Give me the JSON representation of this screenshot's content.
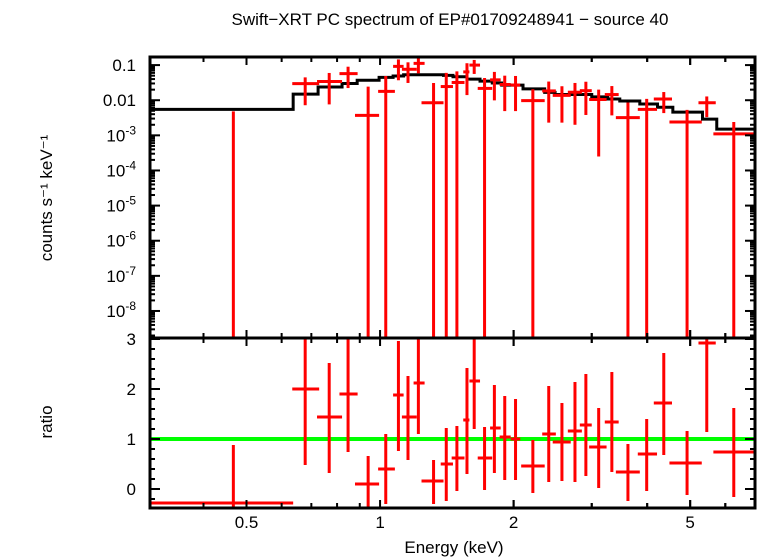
{
  "chart_data": [
    {
      "type": "scatter",
      "panel": "top",
      "title": "Swift−XRT PC spectrum of EP#01709248941 − source 40",
      "ylabel": "counts s⁻¹ keV⁻¹",
      "xlabel": "Energy (keV)",
      "x_scale": "log",
      "y_scale": "log",
      "xlim": [
        0.303,
        7.0
      ],
      "ylim": [
        1.7e-09,
        0.17
      ],
      "y_ticks": [
        {
          "value": 0.1,
          "base": "0.1",
          "exp": ""
        },
        {
          "value": 0.01,
          "base": "0.01",
          "exp": ""
        },
        {
          "value": 0.001,
          "base": "10",
          "exp": "-3"
        },
        {
          "value": 0.0001,
          "base": "10",
          "exp": "-4"
        },
        {
          "value": 1e-05,
          "base": "10",
          "exp": "-5"
        },
        {
          "value": 1e-06,
          "base": "10",
          "exp": "-6"
        },
        {
          "value": 1e-07,
          "base": "10",
          "exp": "-7"
        },
        {
          "value": 1e-08,
          "base": "10",
          "exp": "-8"
        }
      ],
      "colors": {
        "data": "#ff0000",
        "model": "#000000"
      },
      "model_steps": {
        "edges": [
          0.303,
          0.637,
          0.725,
          0.821,
          0.888,
          0.995,
          1.07,
          1.13,
          1.39,
          1.46,
          1.57,
          1.68,
          1.79,
          1.88,
          2.1,
          2.35,
          2.48,
          3.0,
          3.26,
          3.47,
          3.85,
          4.22,
          4.57,
          5.33,
          5.74,
          7.0
        ],
        "values": [
          0.0055,
          0.0149,
          0.0237,
          0.03,
          0.037,
          0.0446,
          0.049,
          0.053,
          0.051,
          0.0465,
          0.04,
          0.035,
          0.031,
          0.027,
          0.021,
          0.0167,
          0.0146,
          0.0125,
          0.0108,
          0.0095,
          0.0078,
          0.0063,
          0.0046,
          0.0029,
          0.0015
        ]
      },
      "points": [
        {
          "e": 0.467,
          "elo": 0.303,
          "ehi": 0.637,
          "y": -0.0015,
          "ylo": -0.01,
          "yhi": 0.0048
        },
        {
          "e": 0.678,
          "elo": 0.634,
          "ehi": 0.729,
          "y": 0.0298,
          "ylo": 0.0072,
          "yhi": 0.0447
        },
        {
          "e": 0.768,
          "elo": 0.721,
          "ehi": 0.821,
          "y": 0.0341,
          "ylo": 0.0076,
          "yhi": 0.0597
        },
        {
          "e": 0.847,
          "elo": 0.81,
          "ehi": 0.89,
          "y": 0.057,
          "ylo": 0.0222,
          "yhi": 0.09
        },
        {
          "e": 0.94,
          "elo": 0.878,
          "ehi": 0.995,
          "y": 0.0037,
          "ylo": -0.014,
          "yhi": 0.0244
        },
        {
          "e": 1.03,
          "elo": 0.99,
          "ehi": 1.08,
          "y": 0.0178,
          "ylo": -0.013,
          "yhi": 0.049
        },
        {
          "e": 1.1,
          "elo": 1.07,
          "ehi": 1.13,
          "y": 0.092,
          "ylo": 0.037,
          "yhi": 0.145
        },
        {
          "e": 1.156,
          "elo": 1.12,
          "ehi": 1.21,
          "y": 0.076,
          "ylo": 0.031,
          "yhi": 0.12
        },
        {
          "e": 1.22,
          "elo": 1.19,
          "ehi": 1.26,
          "y": 0.112,
          "ylo": 0.058,
          "yhi": 0.159
        },
        {
          "e": 1.32,
          "elo": 1.24,
          "ehi": 1.39,
          "y": 0.0085,
          "ylo": -0.016,
          "yhi": 0.031
        },
        {
          "e": 1.41,
          "elo": 1.37,
          "ehi": 1.46,
          "y": 0.0245,
          "ylo": -0.012,
          "yhi": 0.06
        },
        {
          "e": 1.49,
          "elo": 1.45,
          "ehi": 1.55,
          "y": 0.032,
          "ylo": -0.002,
          "yhi": 0.066
        },
        {
          "e": 1.57,
          "elo": 1.54,
          "ehi": 1.59,
          "y": 0.064,
          "ylo": 0.014,
          "yhi": 0.113
        },
        {
          "e": 1.63,
          "elo": 1.59,
          "ehi": 1.68,
          "y": 0.1,
          "ylo": 0.056,
          "yhi": 0.14
        },
        {
          "e": 1.72,
          "elo": 1.66,
          "ehi": 1.79,
          "y": 0.0217,
          "ylo": -0.0007,
          "yhi": 0.043
        },
        {
          "e": 1.81,
          "elo": 1.77,
          "ehi": 1.87,
          "y": 0.038,
          "ylo": 0.0099,
          "yhi": 0.064
        },
        {
          "e": 1.91,
          "elo": 1.86,
          "ehi": 1.97,
          "y": 0.028,
          "ylo": 0.0049,
          "yhi": 0.05
        },
        {
          "e": 2.02,
          "elo": 1.97,
          "ehi": 2.07,
          "y": 0.027,
          "ylo": 0.0049,
          "yhi": 0.049
        },
        {
          "e": 2.21,
          "elo": 2.08,
          "ehi": 2.35,
          "y": 0.0097,
          "ylo": -0.0017,
          "yhi": 0.0206
        },
        {
          "e": 2.4,
          "elo": 2.32,
          "ehi": 2.49,
          "y": 0.0184,
          "ylo": 0.0023,
          "yhi": 0.034
        },
        {
          "e": 2.57,
          "elo": 2.45,
          "ehi": 2.69,
          "y": 0.0137,
          "ylo": 0.0023,
          "yhi": 0.025
        },
        {
          "e": 2.75,
          "elo": 2.65,
          "ehi": 2.85,
          "y": 0.0169,
          "ylo": 0.002,
          "yhi": 0.031
        },
        {
          "e": 2.91,
          "elo": 2.82,
          "ehi": 3.0,
          "y": 0.0187,
          "ylo": 0.0038,
          "yhi": 0.0336
        },
        {
          "e": 3.11,
          "elo": 2.96,
          "ehi": 3.24,
          "y": 0.0105,
          "ylo": 0.00025,
          "yhi": 0.02
        },
        {
          "e": 3.33,
          "elo": 3.21,
          "ehi": 3.45,
          "y": 0.0145,
          "ylo": 0.0037,
          "yhi": 0.0253
        },
        {
          "e": 3.62,
          "elo": 3.4,
          "ehi": 3.85,
          "y": 0.0032,
          "ylo": -0.0023,
          "yhi": 0.0086
        },
        {
          "e": 3.99,
          "elo": 3.81,
          "ehi": 4.21,
          "y": 0.0055,
          "ylo": -0.0003,
          "yhi": 0.0109
        },
        {
          "e": 4.36,
          "elo": 4.14,
          "ehi": 4.55,
          "y": 0.0108,
          "ylo": 0.0043,
          "yhi": 0.0171
        },
        {
          "e": 4.92,
          "elo": 4.49,
          "ehi": 5.31,
          "y": 0.0024,
          "ylo": -0.0006,
          "yhi": 0.0053
        },
        {
          "e": 5.45,
          "elo": 5.22,
          "ehi": 5.71,
          "y": 0.0085,
          "ylo": 0.0033,
          "yhi": 0.0128
        },
        {
          "e": 6.27,
          "elo": 5.64,
          "ehi": 6.96,
          "y": 0.0011,
          "ylo": -0.0002,
          "yhi": 0.0024
        }
      ]
    },
    {
      "type": "scatter",
      "panel": "bottom",
      "ylabel": "ratio",
      "xlabel": "Energy (keV)",
      "x_scale": "log",
      "xlim": [
        0.303,
        7.0
      ],
      "ylim": [
        -0.38,
        3.02
      ],
      "x_ticks": [
        {
          "value": 0.5,
          "label": "0.5"
        },
        {
          "value": 1,
          "label": "1"
        },
        {
          "value": 2,
          "label": "2"
        },
        {
          "value": 5,
          "label": "5"
        }
      ],
      "y_ticks": [
        {
          "value": 0,
          "label": "0"
        },
        {
          "value": 1,
          "label": "1"
        },
        {
          "value": 2,
          "label": "2"
        },
        {
          "value": 3,
          "label": "3"
        }
      ],
      "reference_line": {
        "value": 1,
        "color": "#00ff00"
      },
      "colors": {
        "data": "#ff0000"
      },
      "points": [
        {
          "e": 0.467,
          "elo": 0.303,
          "ehi": 0.637,
          "r": -0.28,
          "rlo": -1,
          "rhi": 0.88
        },
        {
          "e": 0.678,
          "elo": 0.634,
          "ehi": 0.729,
          "r": 2.0,
          "rlo": 0.48,
          "rhi": 3.0
        },
        {
          "e": 0.768,
          "elo": 0.721,
          "ehi": 0.821,
          "r": 1.44,
          "rlo": 0.32,
          "rhi": 2.52
        },
        {
          "e": 0.847,
          "elo": 0.81,
          "ehi": 0.89,
          "r": 1.9,
          "rlo": 0.74,
          "rhi": 3.0
        },
        {
          "e": 0.94,
          "elo": 0.878,
          "ehi": 0.995,
          "r": 0.1,
          "rlo": -0.38,
          "rhi": 0.66
        },
        {
          "e": 1.03,
          "elo": 0.99,
          "ehi": 1.08,
          "r": 0.4,
          "rlo": -0.3,
          "rhi": 1.1
        },
        {
          "e": 1.1,
          "elo": 1.07,
          "ehi": 1.13,
          "r": 1.88,
          "rlo": 0.76,
          "rhi": 2.96
        },
        {
          "e": 1.156,
          "elo": 1.12,
          "ehi": 1.21,
          "r": 1.44,
          "rlo": 0.58,
          "rhi": 2.26
        },
        {
          "e": 1.22,
          "elo": 1.19,
          "ehi": 1.26,
          "r": 2.12,
          "rlo": 1.1,
          "rhi": 3.0
        },
        {
          "e": 1.32,
          "elo": 1.24,
          "ehi": 1.39,
          "r": 0.16,
          "rlo": -0.3,
          "rhi": 0.58
        },
        {
          "e": 1.41,
          "elo": 1.37,
          "ehi": 1.46,
          "r": 0.5,
          "rlo": -0.24,
          "rhi": 1.22
        },
        {
          "e": 1.49,
          "elo": 1.45,
          "ehi": 1.55,
          "r": 0.62,
          "rlo": -0.04,
          "rhi": 1.26
        },
        {
          "e": 1.57,
          "elo": 1.54,
          "ehi": 1.59,
          "r": 1.38,
          "rlo": 0.3,
          "rhi": 2.42
        },
        {
          "e": 1.63,
          "elo": 1.59,
          "ehi": 1.68,
          "r": 2.16,
          "rlo": 1.2,
          "rhi": 3.0
        },
        {
          "e": 1.72,
          "elo": 1.66,
          "ehi": 1.79,
          "r": 0.62,
          "rlo": -0.02,
          "rhi": 1.24
        },
        {
          "e": 1.81,
          "elo": 1.77,
          "ehi": 1.87,
          "r": 1.22,
          "rlo": 0.32,
          "rhi": 2.08
        },
        {
          "e": 1.91,
          "elo": 1.86,
          "ehi": 1.97,
          "r": 1.04,
          "rlo": 0.18,
          "rhi": 1.86
        },
        {
          "e": 2.02,
          "elo": 1.97,
          "ehi": 2.07,
          "r": 1.0,
          "rlo": 0.18,
          "rhi": 1.8
        },
        {
          "e": 2.21,
          "elo": 2.08,
          "ehi": 2.35,
          "r": 0.46,
          "rlo": -0.08,
          "rhi": 0.98
        },
        {
          "e": 2.4,
          "elo": 2.32,
          "ehi": 2.49,
          "r": 1.1,
          "rlo": 0.14,
          "rhi": 2.06
        },
        {
          "e": 2.57,
          "elo": 2.45,
          "ehi": 2.69,
          "r": 0.94,
          "rlo": 0.16,
          "rhi": 1.72
        },
        {
          "e": 2.75,
          "elo": 2.65,
          "ehi": 2.85,
          "r": 1.16,
          "rlo": 0.14,
          "rhi": 2.14
        },
        {
          "e": 2.91,
          "elo": 2.82,
          "ehi": 3.0,
          "r": 1.28,
          "rlo": 0.26,
          "rhi": 2.3
        },
        {
          "e": 3.11,
          "elo": 2.96,
          "ehi": 3.24,
          "r": 0.84,
          "rlo": 0.02,
          "rhi": 1.62
        },
        {
          "e": 3.33,
          "elo": 3.21,
          "ehi": 3.45,
          "r": 1.34,
          "rlo": 0.34,
          "rhi": 2.34
        },
        {
          "e": 3.62,
          "elo": 3.4,
          "ehi": 3.85,
          "r": 0.34,
          "rlo": -0.24,
          "rhi": 0.9
        },
        {
          "e": 3.99,
          "elo": 3.81,
          "ehi": 4.21,
          "r": 0.7,
          "rlo": -0.04,
          "rhi": 1.4
        },
        {
          "e": 4.36,
          "elo": 4.14,
          "ehi": 4.55,
          "r": 1.72,
          "rlo": 0.68,
          "rhi": 2.72
        },
        {
          "e": 4.92,
          "elo": 4.49,
          "ehi": 5.31,
          "r": 0.52,
          "rlo": -0.12,
          "rhi": 1.16
        },
        {
          "e": 5.45,
          "elo": 5.22,
          "ehi": 5.71,
          "r": 2.92,
          "rlo": 1.14,
          "rhi": 4.4
        },
        {
          "e": 6.27,
          "elo": 5.64,
          "ehi": 6.96,
          "r": 0.74,
          "rlo": -0.16,
          "rhi": 1.62
        }
      ]
    }
  ]
}
